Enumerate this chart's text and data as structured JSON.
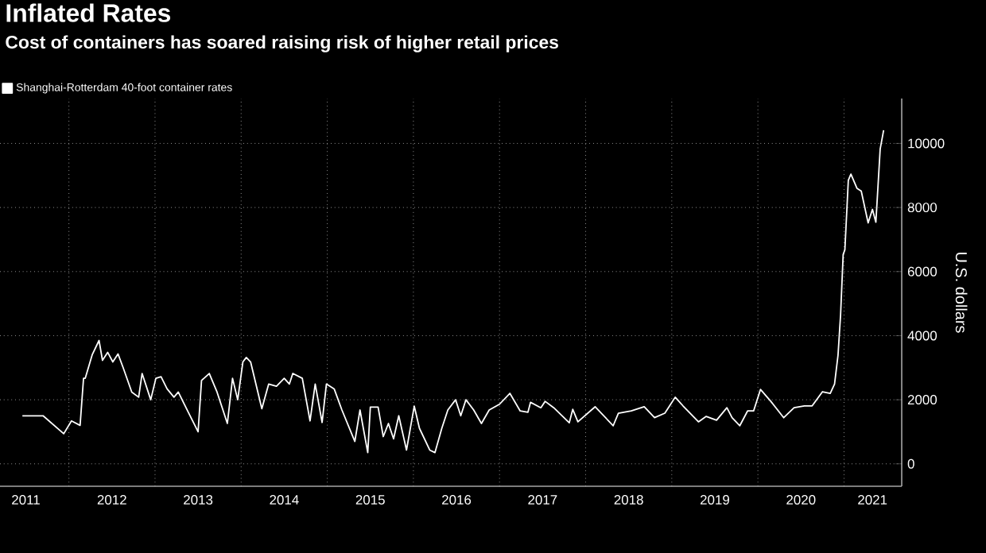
{
  "chart_data": {
    "type": "line",
    "title": "Inflated Rates",
    "subtitle": "Cost of containers has soared raising risk of higher retail prices",
    "ylabel": "U.S. dollars",
    "series": [
      {
        "name": "Shanghai-Rotterdam 40-foot container rates",
        "color": "#ffffff",
        "x": [
          2011.46,
          2011.7,
          2011.94,
          2012.03,
          2012.13,
          2012.17,
          2012.19,
          2012.27,
          2012.35,
          2012.39,
          2012.45,
          2012.51,
          2012.57,
          2012.63,
          2012.73,
          2012.81,
          2012.85,
          2012.95,
          2013.01,
          2013.07,
          2013.14,
          2013.22,
          2013.27,
          2013.39,
          2013.5,
          2013.54,
          2013.63,
          2013.72,
          2013.84,
          2013.9,
          2013.96,
          2014.02,
          2014.06,
          2014.11,
          2014.2,
          2014.24,
          2014.32,
          2014.41,
          2014.5,
          2014.56,
          2014.6,
          2014.71,
          2014.8,
          2014.86,
          2014.94,
          2014.99,
          2015.08,
          2015.17,
          2015.32,
          2015.38,
          2015.47,
          2015.5,
          2015.59,
          2015.65,
          2015.71,
          2015.77,
          2015.83,
          2015.92,
          2016.01,
          2016.07,
          2016.19,
          2016.25,
          2016.33,
          2016.4,
          2016.49,
          2016.55,
          2016.61,
          2016.7,
          2016.79,
          2016.88,
          2017.0,
          2017.12,
          2017.24,
          2017.33,
          2017.36,
          2017.48,
          2017.53,
          2017.63,
          2017.81,
          2017.85,
          2017.91,
          2018.11,
          2018.32,
          2018.38,
          2018.53,
          2018.68,
          2018.8,
          2018.92,
          2019.04,
          2019.13,
          2019.31,
          2019.4,
          2019.52,
          2019.64,
          2019.7,
          2019.79,
          2019.88,
          2019.95,
          2020.03,
          2020.15,
          2020.3,
          2020.42,
          2020.54,
          2020.63,
          2020.75,
          2020.84,
          2020.89,
          2020.93,
          2020.96,
          2020.99,
          2021.01,
          2021.05,
          2021.08,
          2021.15,
          2021.2,
          2021.28,
          2021.33,
          2021.37,
          2021.42,
          2021.46
        ],
        "values": [
          1500,
          1500,
          940,
          1340,
          1200,
          2670,
          2670,
          3400,
          3850,
          3230,
          3480,
          3180,
          3430,
          3000,
          2240,
          2080,
          2820,
          2000,
          2670,
          2720,
          2340,
          2080,
          2240,
          1590,
          1000,
          2600,
          2820,
          2240,
          1260,
          2670,
          2000,
          3180,
          3320,
          3180,
          2170,
          1720,
          2490,
          2420,
          2670,
          2490,
          2820,
          2670,
          1340,
          2490,
          1290,
          2490,
          2340,
          1680,
          700,
          1680,
          350,
          1770,
          1770,
          850,
          1260,
          780,
          1500,
          430,
          1800,
          1110,
          430,
          350,
          1110,
          1680,
          2000,
          1500,
          2000,
          1680,
          1260,
          1680,
          1860,
          2200,
          1650,
          1610,
          1920,
          1750,
          1950,
          1750,
          1280,
          1700,
          1310,
          1780,
          1190,
          1580,
          1650,
          1780,
          1440,
          1580,
          2080,
          1810,
          1310,
          1480,
          1360,
          1750,
          1440,
          1190,
          1650,
          1650,
          2320,
          1950,
          1440,
          1750,
          1810,
          1810,
          2250,
          2200,
          2490,
          3380,
          4640,
          6530,
          6680,
          8850,
          9040,
          8600,
          8510,
          7520,
          7940,
          7540,
          9830,
          10410
        ]
      }
    ],
    "xlim": [
      2011.2,
      2021.67
    ],
    "ylim": [
      -700,
      11400
    ],
    "xticks": [
      {
        "value": 2011.5,
        "label": "2011"
      },
      {
        "value": 2012,
        "label": null
      },
      {
        "value": 2012.5,
        "label": "2012"
      },
      {
        "value": 2013,
        "label": null
      },
      {
        "value": 2013.5,
        "label": "2013"
      },
      {
        "value": 2014,
        "label": null
      },
      {
        "value": 2014.5,
        "label": "2014"
      },
      {
        "value": 2015,
        "label": null
      },
      {
        "value": 2015.5,
        "label": "2015"
      },
      {
        "value": 2016,
        "label": null
      },
      {
        "value": 2016.5,
        "label": "2016"
      },
      {
        "value": 2017,
        "label": null
      },
      {
        "value": 2017.5,
        "label": "2017"
      },
      {
        "value": 2018,
        "label": null
      },
      {
        "value": 2018.5,
        "label": "2018"
      },
      {
        "value": 2019,
        "label": null
      },
      {
        "value": 2019.5,
        "label": "2019"
      },
      {
        "value": 2020,
        "label": null
      },
      {
        "value": 2020.5,
        "label": "2020"
      },
      {
        "value": 2021,
        "label": null
      },
      {
        "value": 2021.33,
        "label": "2021"
      }
    ],
    "yticks": [
      0,
      2000,
      4000,
      6000,
      8000,
      10000
    ],
    "grid": true,
    "legend": "top left"
  }
}
